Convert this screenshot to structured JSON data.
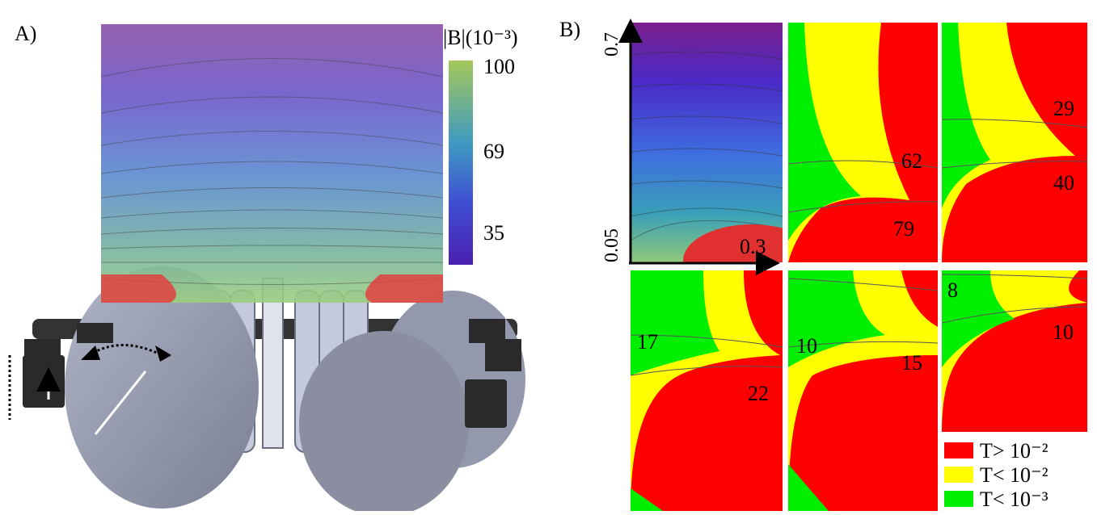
{
  "panel_a": {
    "label": "A)",
    "colorbar": {
      "title": "|B|(10⁻³)",
      "ticks": [
        100,
        69,
        35
      ]
    }
  },
  "panel_b": {
    "label": "B)",
    "y_axis": {
      "top": "0.7",
      "bottom": "0.05"
    },
    "subplots": [
      {
        "labels": [
          "0.3"
        ]
      },
      {
        "labels": [
          "62",
          "79"
        ]
      },
      {
        "labels": [
          "29",
          "40"
        ]
      },
      {
        "labels": [
          "17",
          "22"
        ]
      },
      {
        "labels": [
          "10",
          "15"
        ]
      },
      {
        "labels": [
          "8",
          "10"
        ]
      }
    ],
    "legend": [
      {
        "label": "T> 10⁻²",
        "color": "#ff0000"
      },
      {
        "label": "T< 10⁻²",
        "color": "#ffff00"
      },
      {
        "label": "T< 10⁻³",
        "color": "#00ee00"
      }
    ]
  }
}
